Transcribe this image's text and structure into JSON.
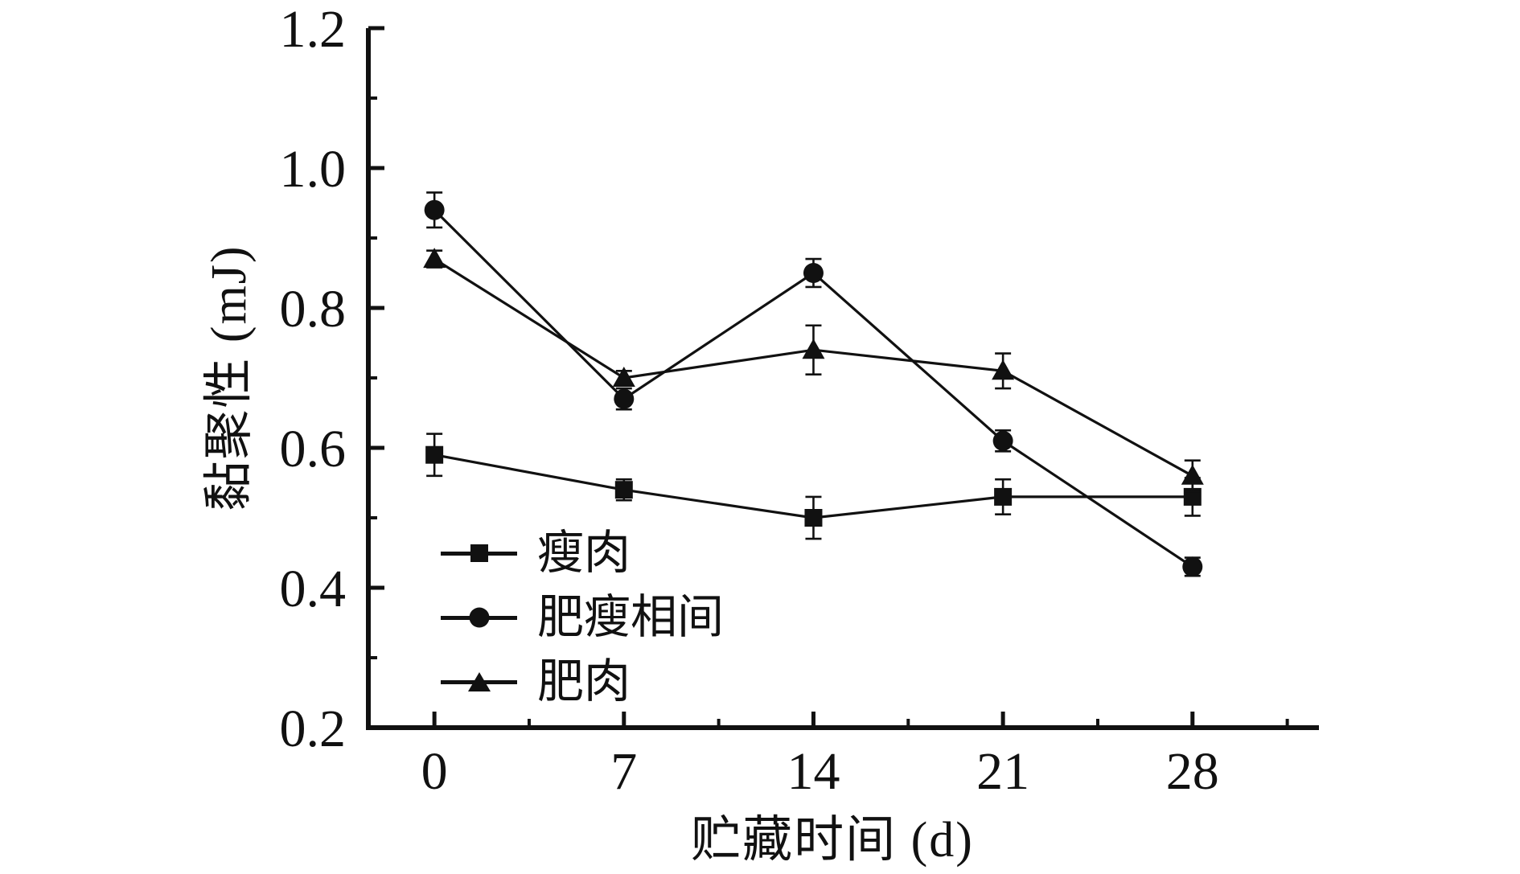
{
  "figure": {
    "background": "#ffffff",
    "ink_color": "#111111"
  },
  "chart_data": {
    "type": "line",
    "title": "",
    "xlabel": "贮藏时间 (d)",
    "ylabel": "黏聚性 (mJ)",
    "x": [
      0,
      7,
      14,
      21,
      28
    ],
    "x_tick_labels": [
      "0",
      "7",
      "14",
      "21",
      "28"
    ],
    "x_minor_ticks": [
      3.5,
      10.5,
      17.5,
      24.5,
      31.5
    ],
    "y_major_ticks": [
      0.2,
      0.4,
      0.6,
      0.8,
      1.0,
      1.2
    ],
    "y_tick_labels": [
      "0.2",
      "0.4",
      "0.6",
      "0.8",
      "1.0",
      "1.2"
    ],
    "y_minor_ticks": [
      0.3,
      0.5,
      0.7,
      0.9,
      1.1
    ],
    "ylim": [
      0.2,
      1.2
    ],
    "grid": false,
    "legend_position": "inside-lower-left",
    "error_bars": true,
    "series": [
      {
        "name": "瘦肉",
        "marker": "square",
        "values": [
          0.59,
          0.54,
          0.5,
          0.53,
          0.53
        ],
        "errors": [
          0.03,
          0.015,
          0.03,
          0.025,
          0.027
        ]
      },
      {
        "name": "肥瘦相间",
        "marker": "circle",
        "values": [
          0.94,
          0.67,
          0.85,
          0.61,
          0.43
        ],
        "errors": [
          0.025,
          0.015,
          0.02,
          0.015,
          0.013
        ]
      },
      {
        "name": "肥肉",
        "marker": "triangle",
        "values": [
          0.87,
          0.7,
          0.74,
          0.71,
          0.56
        ],
        "errors": [
          0.012,
          0.01,
          0.035,
          0.025,
          0.022
        ]
      }
    ]
  }
}
